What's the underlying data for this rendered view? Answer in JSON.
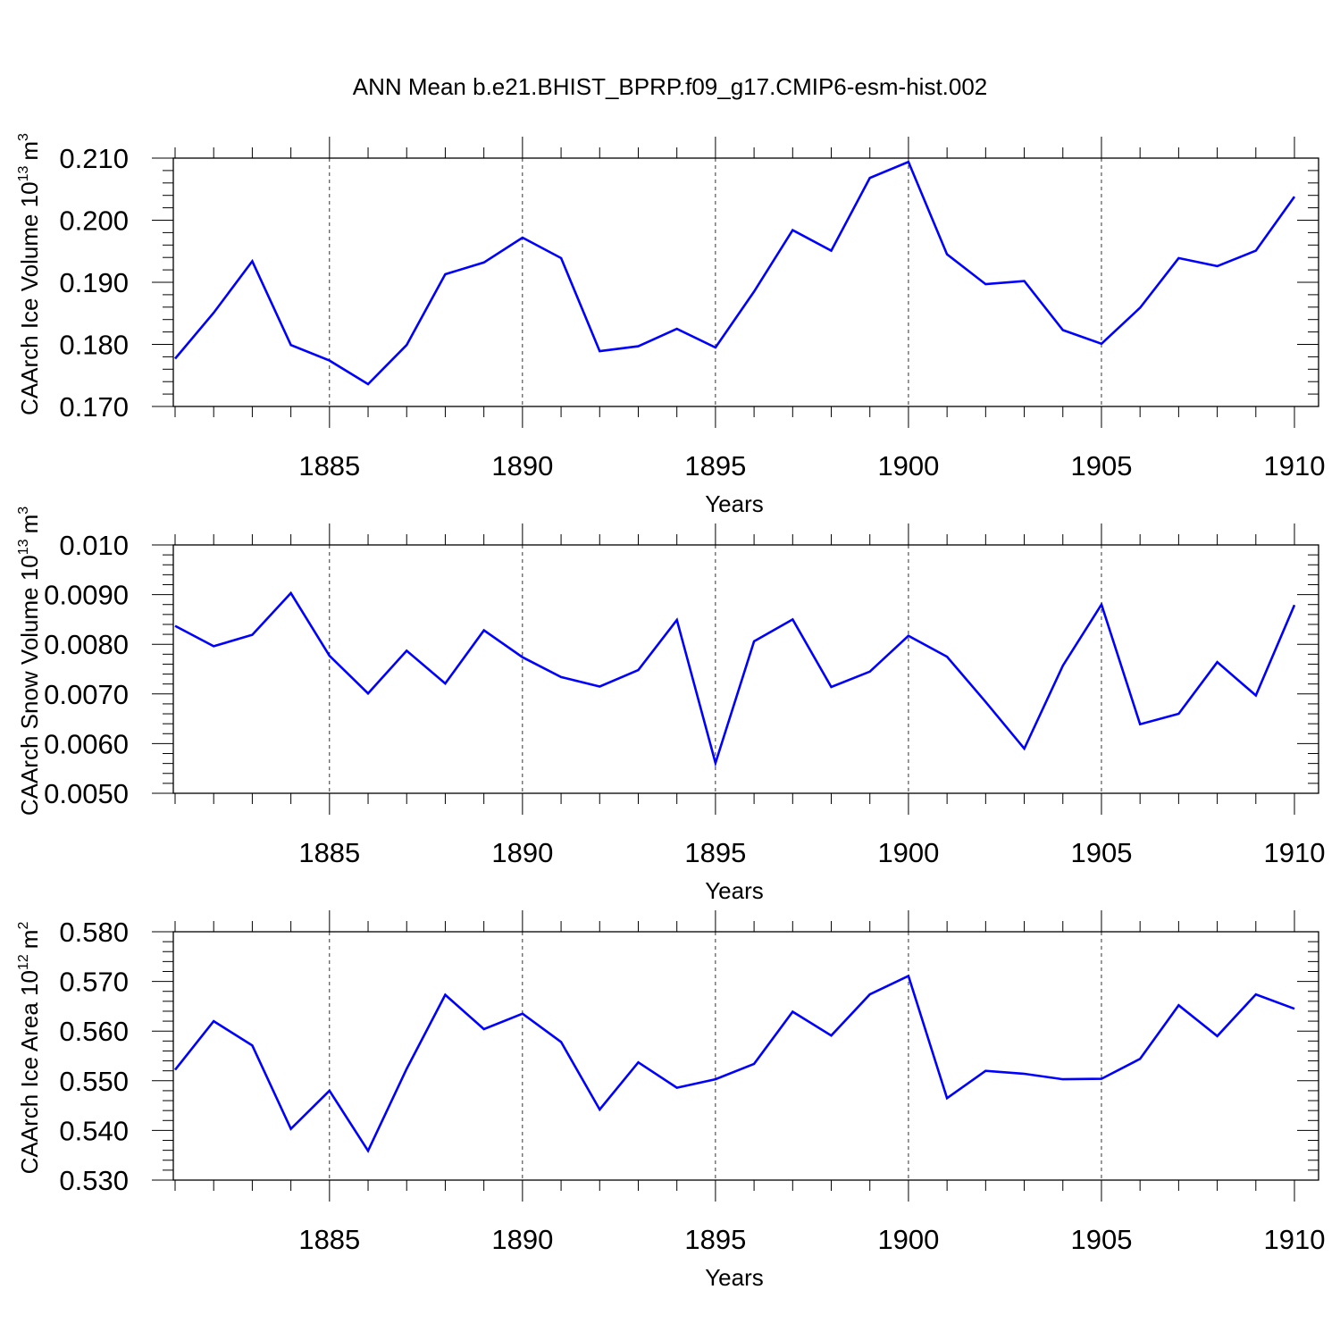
{
  "figure": {
    "title": "ANN Mean b.e21.BHIST_BPRP.f09_g17.CMIP6-esm-hist.002"
  },
  "colors": {
    "series_line": "#0000ff",
    "axis": "#000000",
    "gridline": "#000000",
    "background": "#ffffff"
  },
  "chart_data": [
    {
      "type": "line",
      "ylabel": "CAArch Ice Volume 10",
      "ylabel_exponent": "13",
      "ylabel_unit": "m",
      "ylabel_unit_exponent": "3",
      "xlabel": "Years",
      "xlim": [
        1881,
        1910
      ],
      "ylim": [
        0.17,
        0.21
      ],
      "y_ticks": [
        "0.170",
        "0.180",
        "0.190",
        "0.200",
        "0.210"
      ],
      "x_ticks": [
        "1885",
        "1890",
        "1895",
        "1900",
        "1905",
        "1910"
      ],
      "grid": "vertical dashed at labeled years",
      "x": [
        1881,
        1882,
        1883,
        1884,
        1885,
        1886,
        1887,
        1888,
        1889,
        1890,
        1891,
        1892,
        1893,
        1894,
        1895,
        1896,
        1897,
        1898,
        1899,
        1900,
        1901,
        1902,
        1903,
        1904,
        1905,
        1906,
        1907,
        1908,
        1909,
        1910
      ],
      "values": [
        0.1777,
        0.1851,
        0.1934,
        0.1799,
        0.1774,
        0.1736,
        0.1799,
        0.1913,
        0.1932,
        0.1972,
        0.1939,
        0.1789,
        0.1797,
        0.1825,
        0.1795,
        0.1885,
        0.1984,
        0.1951,
        0.2068,
        0.2094,
        0.1945,
        0.1897,
        0.1902,
        0.1823,
        0.1801,
        0.1859,
        0.1939,
        0.1926,
        0.1951,
        0.2038
      ]
    },
    {
      "type": "line",
      "ylabel": "CAArch Snow Volume 10",
      "ylabel_exponent": "13",
      "ylabel_unit": "m",
      "ylabel_unit_exponent": "3",
      "xlabel": "Years",
      "xlim": [
        1881,
        1910
      ],
      "ylim": [
        0.005,
        0.01
      ],
      "y_ticks": [
        "0.0050",
        "0.0060",
        "0.0070",
        "0.0080",
        "0.0090",
        "0.010"
      ],
      "x_ticks": [
        "1885",
        "1890",
        "1895",
        "1900",
        "1905",
        "1910"
      ],
      "grid": "vertical dashed at labeled years",
      "x": [
        1881,
        1882,
        1883,
        1884,
        1885,
        1886,
        1887,
        1888,
        1889,
        1890,
        1891,
        1892,
        1893,
        1894,
        1895,
        1896,
        1897,
        1898,
        1899,
        1900,
        1901,
        1902,
        1903,
        1904,
        1905,
        1906,
        1907,
        1908,
        1909,
        1910
      ],
      "values": [
        0.00837,
        0.00796,
        0.00819,
        0.00903,
        0.00777,
        0.00701,
        0.00787,
        0.00721,
        0.00828,
        0.00774,
        0.00734,
        0.00715,
        0.00748,
        0.00849,
        0.00561,
        0.00806,
        0.0085,
        0.00714,
        0.00745,
        0.00817,
        0.00775,
        0.00684,
        0.0059,
        0.00757,
        0.0088,
        0.00639,
        0.0066,
        0.00764,
        0.00697,
        0.00879
      ]
    },
    {
      "type": "line",
      "ylabel": "CAArch Ice Area 10",
      "ylabel_exponent": "12",
      "ylabel_unit": "m",
      "ylabel_unit_exponent": "2",
      "xlabel": "Years",
      "xlim": [
        1881,
        1910
      ],
      "ylim": [
        0.53,
        0.58
      ],
      "y_ticks": [
        "0.530",
        "0.540",
        "0.550",
        "0.560",
        "0.570",
        "0.580"
      ],
      "x_ticks": [
        "1885",
        "1890",
        "1895",
        "1900",
        "1905",
        "1910"
      ],
      "grid": "vertical dashed at labeled years",
      "x": [
        1881,
        1882,
        1883,
        1884,
        1885,
        1886,
        1887,
        1888,
        1889,
        1890,
        1891,
        1892,
        1893,
        1894,
        1895,
        1896,
        1897,
        1898,
        1899,
        1900,
        1901,
        1902,
        1903,
        1904,
        1905,
        1906,
        1907,
        1908,
        1909,
        1910
      ],
      "values": [
        0.5522,
        0.562,
        0.5571,
        0.5403,
        0.548,
        0.5359,
        0.5524,
        0.5673,
        0.5604,
        0.5635,
        0.5578,
        0.5442,
        0.5537,
        0.5486,
        0.5503,
        0.5534,
        0.5639,
        0.5591,
        0.5674,
        0.5711,
        0.5465,
        0.552,
        0.5514,
        0.5503,
        0.5504,
        0.5544,
        0.5652,
        0.559,
        0.5674,
        0.5645
      ]
    }
  ]
}
